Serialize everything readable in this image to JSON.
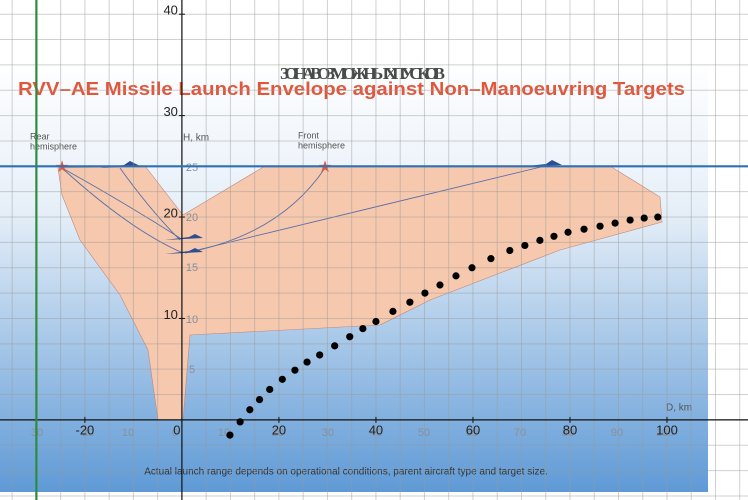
{
  "chart_data": {
    "type": "scatter",
    "xlim": [
      -37.5,
      116.7
    ],
    "ylim": [
      -7.9,
      41.4
    ],
    "xticks": [
      -20,
      0,
      20,
      40,
      60,
      80,
      100
    ],
    "yticks": [
      10,
      20,
      30,
      40
    ],
    "xgrid": [
      -35,
      -30,
      -25,
      -20,
      -15,
      -10,
      -5,
      0,
      5,
      10,
      15,
      20,
      25,
      30,
      35,
      40,
      45,
      50,
      55,
      60,
      65,
      70,
      75,
      80,
      85,
      90,
      95,
      100,
      105,
      110,
      115
    ],
    "ygrid": [
      -7.5,
      -5,
      -2.5,
      0,
      2.5,
      5,
      7.5,
      10,
      12.5,
      15,
      17.5,
      20,
      22.5,
      25,
      27.5,
      30,
      32.5,
      35,
      37.5,
      40
    ],
    "grid": true,
    "reference_lines": [
      {
        "axis": "x",
        "value": -30,
        "color": "#2e8b3e"
      },
      {
        "axis": "y",
        "value": 25,
        "color": "#2f6fb5"
      }
    ],
    "series": [
      {
        "color": "#000000",
        "x": [
          9.9,
          12,
          14,
          16,
          18.1,
          20.7,
          23.3,
          25.8,
          28.4,
          31.5,
          34.6,
          37.3,
          40,
          43.5,
          47,
          50.1,
          53.2,
          56.5,
          59.8,
          63.7,
          67.6,
          70.7,
          73.8,
          76.7,
          79.6,
          82.9,
          86.2,
          89.3,
          92.4,
          95.3,
          98.1
        ],
        "values": [
          -1.5,
          -0.2,
          1,
          2,
          3,
          4,
          4.9,
          5.7,
          6.4,
          7.3,
          8.2,
          9,
          9.7,
          10.7,
          11.6,
          12.5,
          13.3,
          14.2,
          15,
          15.9,
          16.7,
          17.2,
          17.7,
          18.1,
          18.5,
          18.8,
          19.1,
          19.4,
          19.7,
          19.9,
          20.0
        ]
      }
    ]
  },
  "background_image": {
    "russian_title": "ЗОНА ВОЗМОЖНЫХ ПУСКОВ",
    "title": "RVV–AE Missile Launch Envelope against Non–Manoeuvring Targets",
    "rear_label": [
      "Rear",
      "hemisphere"
    ],
    "front_label": [
      "Front",
      "hemisphere"
    ],
    "y_axis_label": "H, km",
    "x_axis_label": "D, km",
    "x_labels": [
      "30",
      "20",
      "10",
      "0",
      "10",
      "20",
      "30",
      "40",
      "50",
      "60",
      "70",
      "80",
      "90",
      "100"
    ],
    "y_labels": [
      "25",
      "20",
      "15",
      "10",
      "5"
    ],
    "footnote": "Actual launch range depends on operational conditions, parent aircraft type and target size."
  }
}
